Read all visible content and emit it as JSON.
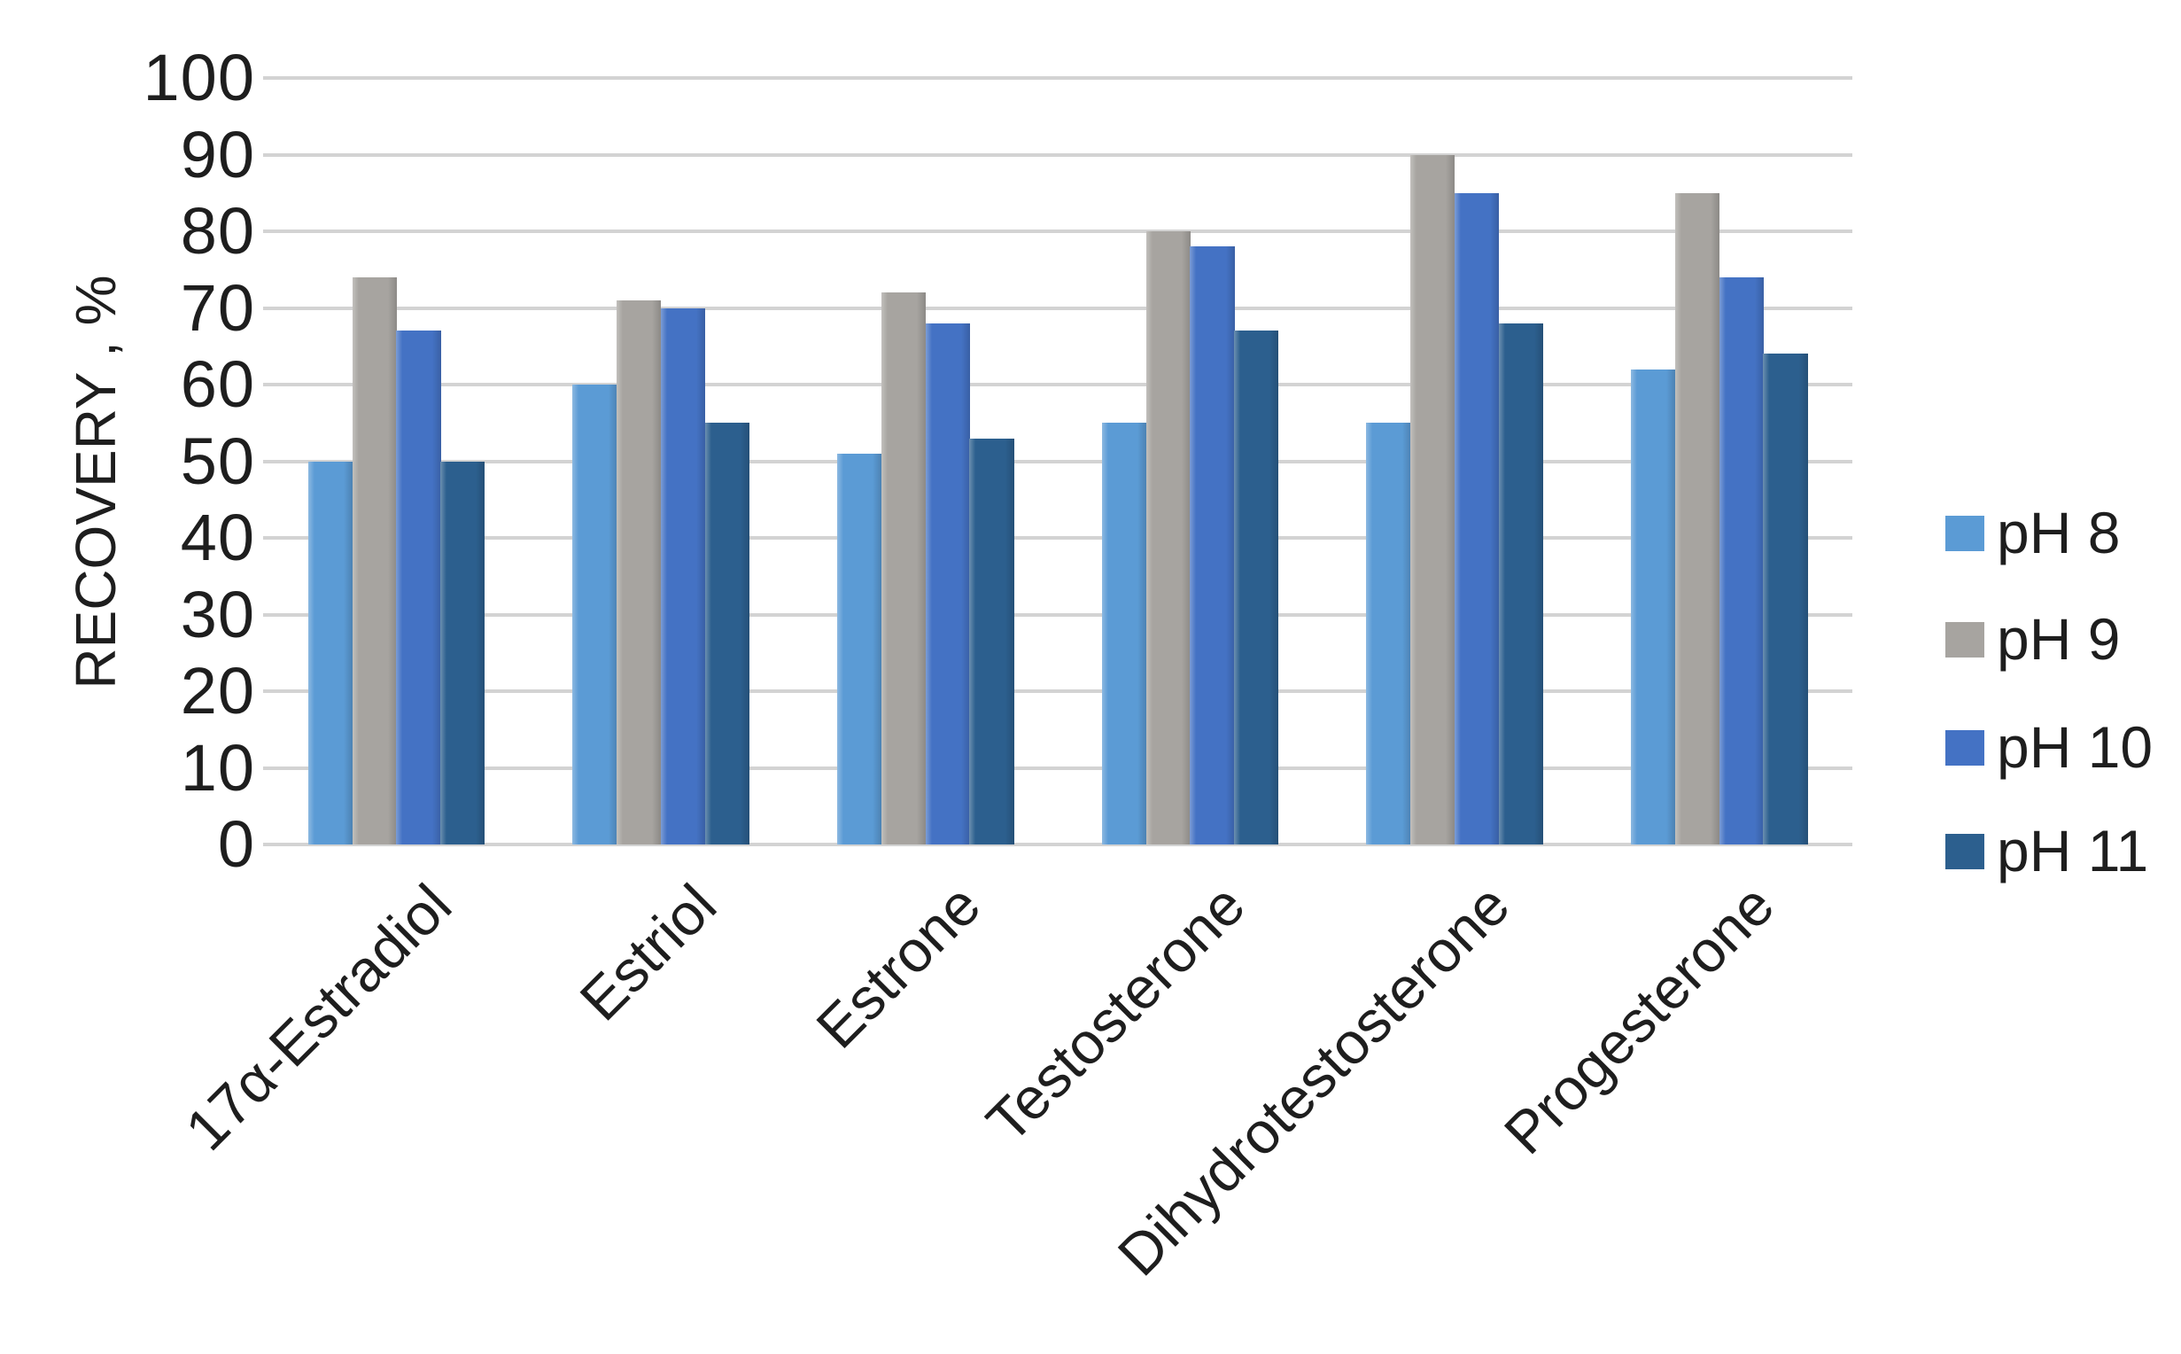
{
  "chart_data": {
    "type": "bar",
    "title": "",
    "xlabel": "",
    "ylabel": "RECOVERY , %",
    "categories": [
      "17α-Estradiol",
      "Estriol",
      "Estrone",
      "Testosterone",
      "Dihydrotestosterone",
      "Progesterone"
    ],
    "series": [
      {
        "name": "pH 8",
        "color": "#5B9BD5",
        "values": [
          50,
          60,
          51,
          55,
          55,
          62
        ]
      },
      {
        "name": "pH 9",
        "color": "#A7A4A0",
        "values": [
          74,
          71,
          72,
          80,
          90,
          85
        ]
      },
      {
        "name": "pH 10",
        "color": "#4472C4",
        "values": [
          67,
          70,
          68,
          78,
          85,
          74
        ]
      },
      {
        "name": "pH 11",
        "color": "#2C5F8E",
        "values": [
          50,
          55,
          53,
          67,
          68,
          64
        ]
      }
    ],
    "ylim": [
      0,
      100
    ],
    "yticks": [
      "0",
      "10",
      "20",
      "30",
      "40",
      "50",
      "60",
      "70",
      "80",
      "90",
      "100"
    ],
    "grid": true,
    "legend_position": "right",
    "colors": {
      "gridline": "#D3D3D3",
      "text": "#1E1E1E",
      "background": "#FFFFFF"
    }
  }
}
